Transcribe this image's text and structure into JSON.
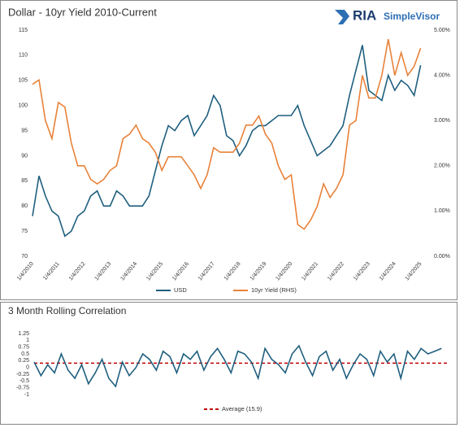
{
  "logo": {
    "brand": "RIA",
    "product": "SimpleVisor"
  },
  "chart_data": [
    {
      "type": "line",
      "title": "Dollar - 10yr Yield 2010-Current",
      "x": [
        2010,
        2010.25,
        2010.5,
        2010.75,
        2011,
        2011.25,
        2011.5,
        2011.75,
        2012,
        2012.25,
        2012.5,
        2012.75,
        2013,
        2013.25,
        2013.5,
        2013.75,
        2014,
        2014.25,
        2014.5,
        2014.75,
        2015,
        2015.25,
        2015.5,
        2015.75,
        2016,
        2016.25,
        2016.5,
        2016.75,
        2017,
        2017.25,
        2017.5,
        2017.75,
        2018,
        2018.25,
        2018.5,
        2018.75,
        2019,
        2019.25,
        2019.5,
        2019.75,
        2020,
        2020.25,
        2020.5,
        2020.75,
        2021,
        2021.25,
        2021.5,
        2021.75,
        2022,
        2022.25,
        2022.5,
        2022.75,
        2023,
        2023.25,
        2023.5,
        2023.75,
        2024,
        2024.25,
        2024.5,
        2024.75,
        2025
      ],
      "xlim": [
        2010,
        2025.2
      ],
      "xticks": [
        {
          "value": 2010,
          "label": "1/4/2010"
        },
        {
          "value": 2011,
          "label": "1/4/2011"
        },
        {
          "value": 2012,
          "label": "1/4/2012"
        },
        {
          "value": 2013,
          "label": "1/4/2013"
        },
        {
          "value": 2014,
          "label": "1/4/2014"
        },
        {
          "value": 2015,
          "label": "1/4/2015"
        },
        {
          "value": 2016,
          "label": "1/4/2016"
        },
        {
          "value": 2017,
          "label": "1/4/2017"
        },
        {
          "value": 2018,
          "label": "1/4/2018"
        },
        {
          "value": 2019,
          "label": "1/4/2019"
        },
        {
          "value": 2020,
          "label": "1/4/2020"
        },
        {
          "value": 2021,
          "label": "1/4/2021"
        },
        {
          "value": 2022,
          "label": "1/4/2022"
        },
        {
          "value": 2023,
          "label": "1/4/2023"
        },
        {
          "value": 2024,
          "label": "1/4/2024"
        },
        {
          "value": 2025,
          "label": "1/4/2025"
        }
      ],
      "ylim": [
        70,
        115
      ],
      "yticks": [
        70,
        75,
        80,
        85,
        90,
        95,
        100,
        105,
        110,
        115
      ],
      "y2lim": [
        0,
        5
      ],
      "y2ticks": [
        {
          "value": 0,
          "label": "0.00%"
        },
        {
          "value": 1,
          "label": "1.00%"
        },
        {
          "value": 2,
          "label": "2.00%"
        },
        {
          "value": 3,
          "label": "3.00%"
        },
        {
          "value": 4,
          "label": "4.00%"
        },
        {
          "value": 5,
          "label": "5.00%"
        }
      ],
      "series": [
        {
          "name": "USD",
          "color": "#1f5f7f",
          "values": [
            78,
            86,
            82,
            79,
            78,
            74,
            75,
            78,
            79,
            82,
            83,
            80,
            80,
            83,
            82,
            80,
            80,
            80,
            82,
            87,
            92,
            96,
            95,
            97,
            98,
            94,
            96,
            98,
            102,
            100,
            94,
            93,
            90,
            92,
            95,
            96,
            96,
            97,
            98,
            98,
            98,
            100,
            96,
            93,
            90,
            91,
            92,
            94,
            96,
            102,
            107,
            112,
            103,
            102,
            101,
            106,
            103,
            105,
            104,
            102,
            108
          ]
        },
        {
          "name": "10yr Yield (RHS)",
          "color": "#e8823a",
          "axis": "y2",
          "values": [
            3.8,
            3.9,
            3.0,
            2.6,
            3.4,
            3.3,
            2.5,
            2.0,
            2.0,
            1.7,
            1.6,
            1.7,
            1.9,
            2.0,
            2.6,
            2.7,
            2.9,
            2.6,
            2.5,
            2.3,
            1.9,
            2.2,
            2.2,
            2.2,
            2.0,
            1.8,
            1.5,
            1.8,
            2.4,
            2.3,
            2.3,
            2.3,
            2.5,
            2.9,
            2.9,
            3.1,
            2.7,
            2.5,
            2.0,
            1.7,
            1.8,
            0.7,
            0.6,
            0.8,
            1.1,
            1.6,
            1.3,
            1.5,
            1.8,
            2.9,
            3.0,
            4.0,
            3.5,
            3.5,
            4.0,
            4.8,
            4.0,
            4.5,
            4.0,
            4.2,
            4.6
          ]
        }
      ]
    },
    {
      "type": "line",
      "title": "3 Month Rolling Correlation",
      "x": [
        2010,
        2010.25,
        2010.5,
        2010.75,
        2011,
        2011.25,
        2011.5,
        2011.75,
        2012,
        2012.25,
        2012.5,
        2012.75,
        2013,
        2013.25,
        2013.5,
        2013.75,
        2014,
        2014.25,
        2014.5,
        2014.75,
        2015,
        2015.25,
        2015.5,
        2015.75,
        2016,
        2016.25,
        2016.5,
        2016.75,
        2017,
        2017.25,
        2017.5,
        2017.75,
        2018,
        2018.25,
        2018.5,
        2018.75,
        2019,
        2019.25,
        2019.5,
        2019.75,
        2020,
        2020.25,
        2020.5,
        2020.75,
        2021,
        2021.25,
        2021.5,
        2021.75,
        2022,
        2022.25,
        2022.5,
        2022.75,
        2023,
        2023.25,
        2023.5,
        2023.75,
        2024,
        2024.25,
        2024.5,
        2024.75,
        2025
      ],
      "xlim": [
        2010,
        2025.2
      ],
      "ylim": [
        -1,
        1.25
      ],
      "yticks": [
        -1,
        -0.75,
        -0.5,
        -0.25,
        0,
        0.25,
        0.5,
        0.75,
        1,
        1.25
      ],
      "series": [
        {
          "color": "#1f5f7f",
          "values": [
            0.2,
            -0.3,
            0.1,
            -0.2,
            0.5,
            -0.1,
            -0.4,
            0.1,
            -0.6,
            -0.2,
            0.3,
            -0.4,
            -0.7,
            0.2,
            -0.3,
            0.0,
            0.5,
            0.3,
            -0.1,
            0.6,
            0.4,
            -0.2,
            0.5,
            0.3,
            0.6,
            -0.1,
            0.4,
            0.7,
            0.3,
            -0.2,
            0.6,
            0.5,
            0.2,
            -0.4,
            0.7,
            0.3,
            0.1,
            -0.2,
            0.5,
            0.8,
            0.2,
            -0.3,
            0.4,
            0.6,
            -0.1,
            0.3,
            -0.4,
            0.1,
            0.5,
            0.3,
            -0.3,
            0.6,
            0.2,
            0.5,
            -0.4,
            0.6,
            0.3,
            0.7,
            0.5,
            0.6,
            0.7
          ]
        }
      ],
      "reference_lines": [
        {
          "name": "Average (15.9)",
          "value": 0.16,
          "color": "#c00000"
        }
      ]
    }
  ]
}
